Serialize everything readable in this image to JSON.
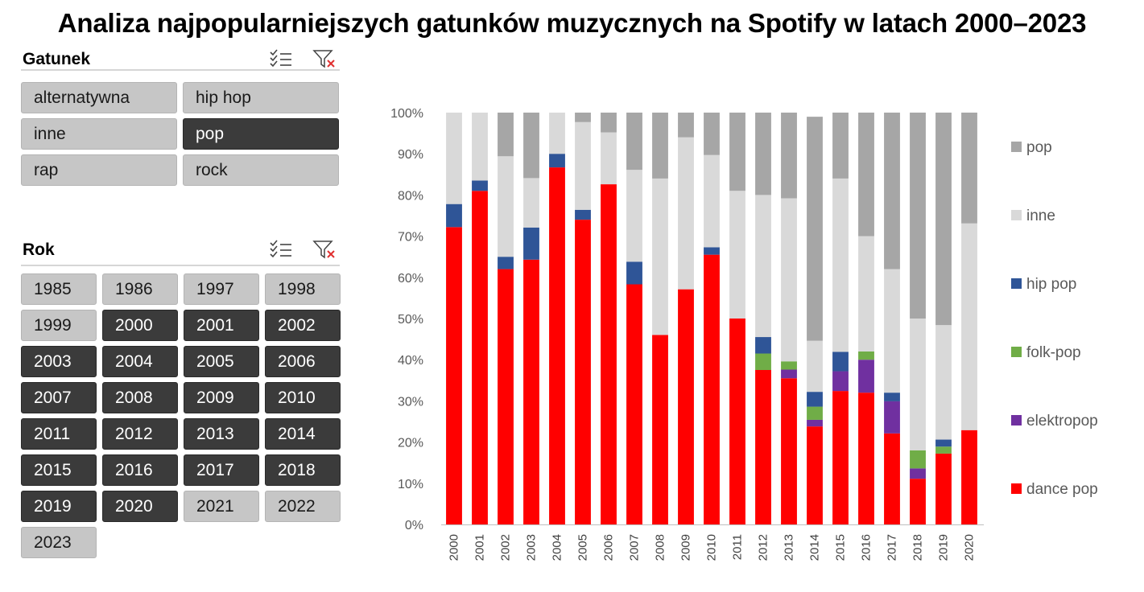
{
  "title": "Analiza najpopularniejszych gatunków muzycznych na Spotify w latach 2000–2023",
  "slicers": {
    "genre": {
      "title": "Gatunek",
      "items": [
        {
          "label": "alternatywna",
          "selected": false
        },
        {
          "label": "hip hop",
          "selected": false
        },
        {
          "label": "inne",
          "selected": false
        },
        {
          "label": "pop",
          "selected": true
        },
        {
          "label": "rap",
          "selected": false
        },
        {
          "label": "rock",
          "selected": false
        }
      ]
    },
    "year": {
      "title": "Rok",
      "items": [
        {
          "label": "1985",
          "selected": false
        },
        {
          "label": "1986",
          "selected": false
        },
        {
          "label": "1997",
          "selected": false
        },
        {
          "label": "1998",
          "selected": false
        },
        {
          "label": "1999",
          "selected": false
        },
        {
          "label": "2000",
          "selected": true
        },
        {
          "label": "2001",
          "selected": true
        },
        {
          "label": "2002",
          "selected": true
        },
        {
          "label": "2003",
          "selected": true
        },
        {
          "label": "2004",
          "selected": true
        },
        {
          "label": "2005",
          "selected": true
        },
        {
          "label": "2006",
          "selected": true
        },
        {
          "label": "2007",
          "selected": true
        },
        {
          "label": "2008",
          "selected": true
        },
        {
          "label": "2009",
          "selected": true
        },
        {
          "label": "2010",
          "selected": true
        },
        {
          "label": "2011",
          "selected": true
        },
        {
          "label": "2012",
          "selected": true
        },
        {
          "label": "2013",
          "selected": true
        },
        {
          "label": "2014",
          "selected": true
        },
        {
          "label": "2015",
          "selected": true
        },
        {
          "label": "2016",
          "selected": true
        },
        {
          "label": "2017",
          "selected": true
        },
        {
          "label": "2018",
          "selected": true
        },
        {
          "label": "2019",
          "selected": true
        },
        {
          "label": "2020",
          "selected": true
        },
        {
          "label": "2021",
          "selected": false
        },
        {
          "label": "2022",
          "selected": false
        },
        {
          "label": "2023",
          "selected": false
        }
      ]
    },
    "icons": {
      "multiselect": "multi-select-icon",
      "clear_filter": "clear-filter-icon"
    },
    "colors": {
      "selected": "#3b3b3b",
      "unselected": "#c6c6c6"
    }
  },
  "chart_data": {
    "type": "bar",
    "stacked": "percent",
    "categories": [
      "2000",
      "2001",
      "2002",
      "2003",
      "2004",
      "2005",
      "2006",
      "2007",
      "2008",
      "2009",
      "2010",
      "2011",
      "2012",
      "2013",
      "2014",
      "2015",
      "2016",
      "2017",
      "2018",
      "2019",
      "2020"
    ],
    "yticks": [
      "0%",
      "10%",
      "20%",
      "30%",
      "40%",
      "50%",
      "60%",
      "70%",
      "80%",
      "90%",
      "100%"
    ],
    "ylim": [
      0,
      100
    ],
    "grid": false,
    "legend_position": "right",
    "series": [
      {
        "name": "dance pop",
        "color": "#ff0000",
        "values": [
          72.2,
          81,
          62,
          64.3,
          86.7,
          74,
          82.6,
          58.3,
          46,
          57.1,
          65.5,
          50,
          37.5,
          35.5,
          23.8,
          32.4,
          32,
          22.1,
          11.1,
          17.2,
          22.9
        ]
      },
      {
        "name": "elektropop",
        "color": "#7030a0",
        "values": [
          0,
          0,
          0,
          0,
          0,
          0,
          0,
          0,
          0,
          0,
          0,
          0,
          0,
          2.1,
          1.6,
          4.8,
          8,
          7.8,
          2.5,
          0,
          0
        ]
      },
      {
        "name": "folk-pop",
        "color": "#70ad47",
        "values": [
          0,
          0,
          0,
          0,
          0,
          0,
          0,
          0,
          0,
          0,
          0,
          0,
          4,
          2,
          3.2,
          0,
          2,
          0,
          4.4,
          1.7,
          0
        ]
      },
      {
        "name": "hip pop",
        "color": "#2f5597",
        "values": [
          5.6,
          2.5,
          3,
          7.8,
          3.3,
          2.4,
          0,
          5.5,
          0,
          0,
          1.8,
          0,
          4,
          0,
          3.6,
          4.7,
          0,
          2.1,
          0,
          1.7,
          0
        ]
      },
      {
        "name": "inne",
        "color": "#d9d9d9",
        "values": [
          22.2,
          16.5,
          24.4,
          12,
          10,
          21.3,
          12.6,
          22.3,
          38,
          36.9,
          22.4,
          31,
          34.5,
          39.6,
          12.4,
          42.1,
          28,
          30,
          32,
          27.8,
          50.2
        ]
      },
      {
        "name": "pop",
        "color": "#a6a6a6",
        "values": [
          0,
          0,
          10.6,
          15.9,
          0,
          2.3,
          4.8,
          13.9,
          16,
          6,
          10.3,
          19,
          20,
          20.8,
          54.4,
          16,
          30,
          38,
          50,
          51.6,
          26.9
        ]
      }
    ],
    "legend_order": [
      "pop",
      "inne",
      "hip pop",
      "folk-pop",
      "elektropop",
      "dance pop"
    ]
  }
}
